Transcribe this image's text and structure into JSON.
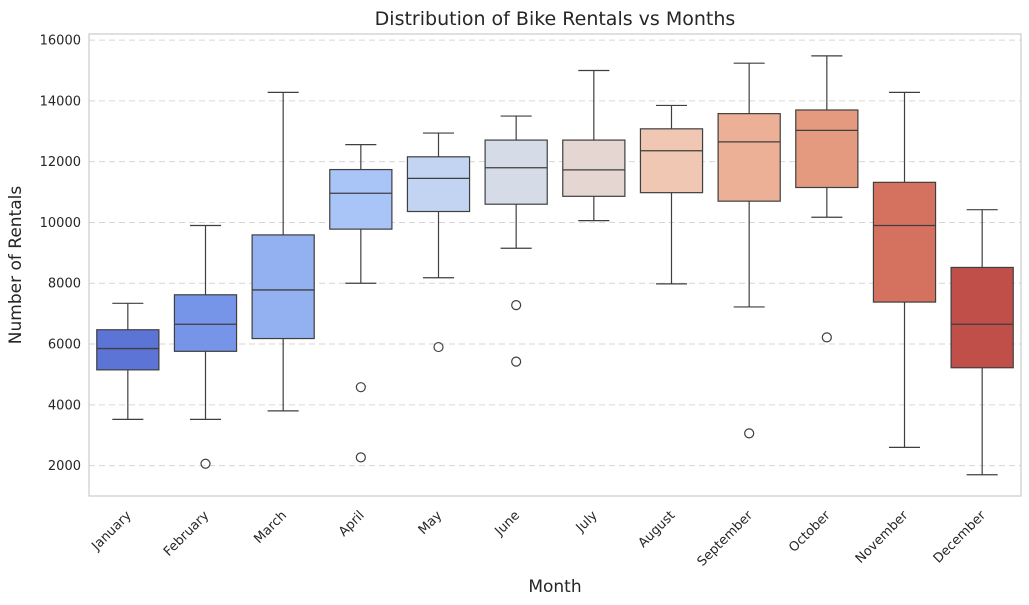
{
  "chart_data": {
    "type": "box",
    "title": "Distribution of Bike Rentals vs Months",
    "xlabel": "Month",
    "ylabel": "Number of Rentals",
    "ylim": [
      1000,
      16200
    ],
    "yticks": [
      2000,
      4000,
      6000,
      8000,
      10000,
      12000,
      14000,
      16000
    ],
    "grid": "y-dashed",
    "categories": [
      "January",
      "February",
      "March",
      "April",
      "May",
      "June",
      "July",
      "August",
      "September",
      "October",
      "November",
      "December"
    ],
    "colors": [
      "#5b74d6",
      "#7695e8",
      "#93b0f1",
      "#a9c4f7",
      "#c2d4f2",
      "#d5dce8",
      "#e5d6d2",
      "#efc7b3",
      "#ecb097",
      "#e49a7f",
      "#d5725f",
      "#bf4f48"
    ],
    "boxes": [
      {
        "whislo": 3520,
        "q1": 5150,
        "med": 5850,
        "q3": 6470,
        "whishi": 7340,
        "fliers": []
      },
      {
        "whislo": 3520,
        "q1": 5760,
        "med": 6650,
        "q3": 7620,
        "whishi": 9900,
        "fliers": [
          2060
        ]
      },
      {
        "whislo": 3800,
        "q1": 6180,
        "med": 7780,
        "q3": 9590,
        "whishi": 14280,
        "fliers": []
      },
      {
        "whislo": 8000,
        "q1": 9780,
        "med": 10960,
        "q3": 11740,
        "whishi": 12560,
        "fliers": [
          4580,
          2270
        ]
      },
      {
        "whislo": 8180,
        "q1": 10360,
        "med": 11450,
        "q3": 12160,
        "whishi": 12940,
        "fliers": [
          5900
        ]
      },
      {
        "whislo": 9150,
        "q1": 10600,
        "med": 11800,
        "q3": 12710,
        "whishi": 13500,
        "fliers": [
          7280,
          5420
        ]
      },
      {
        "whislo": 10060,
        "q1": 10860,
        "med": 11730,
        "q3": 12710,
        "whishi": 15000,
        "fliers": []
      },
      {
        "whislo": 7980,
        "q1": 10980,
        "med": 12360,
        "q3": 13080,
        "whishi": 13850,
        "fliers": []
      },
      {
        "whislo": 7220,
        "q1": 10700,
        "med": 12650,
        "q3": 13580,
        "whishi": 15240,
        "fliers": [
          3060
        ]
      },
      {
        "whislo": 10170,
        "q1": 11150,
        "med": 13030,
        "q3": 13700,
        "whishi": 15480,
        "fliers": [
          6220
        ]
      },
      {
        "whislo": 2600,
        "q1": 7380,
        "med": 9900,
        "q3": 11320,
        "whishi": 14280,
        "fliers": []
      },
      {
        "whislo": 1700,
        "q1": 5220,
        "med": 6650,
        "q3": 8520,
        "whishi": 10420,
        "fliers": []
      }
    ]
  }
}
